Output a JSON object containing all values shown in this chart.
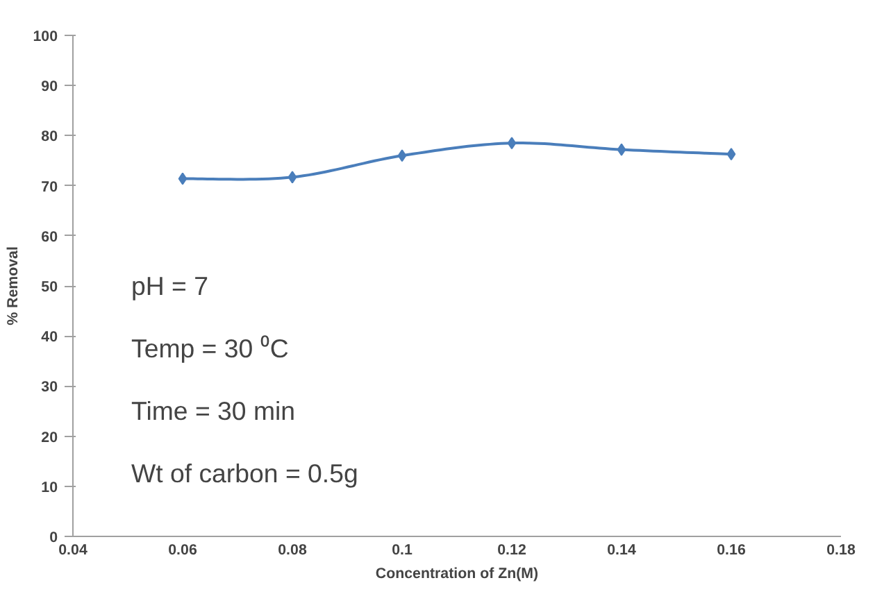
{
  "chart_data": {
    "type": "line",
    "xlabel": "Concentration of Zn(M)",
    "ylabel": "% Removal",
    "x": [
      0.06,
      0.08,
      0.1,
      0.12,
      0.14,
      0.16
    ],
    "series": [
      {
        "color": "#4a7ebb",
        "values": [
          71.4,
          71.7,
          76.0,
          78.5,
          77.2,
          76.3
        ]
      }
    ],
    "xlim": [
      0.04,
      0.18
    ],
    "xticks": [
      0.04,
      0.06,
      0.08,
      0.1,
      0.12,
      0.14,
      0.16,
      0.18
    ],
    "ylim": [
      0,
      100
    ],
    "yticks": [
      0,
      10,
      20,
      30,
      40,
      50,
      60,
      70,
      80,
      90,
      100
    ],
    "grid": false,
    "marker": "diamond",
    "line_style": "solid",
    "annotations": [
      "pH = 7",
      "Temp = 30 ⁰C",
      "Time = 30 min",
      "Wt of carbon = 0.5g"
    ]
  }
}
